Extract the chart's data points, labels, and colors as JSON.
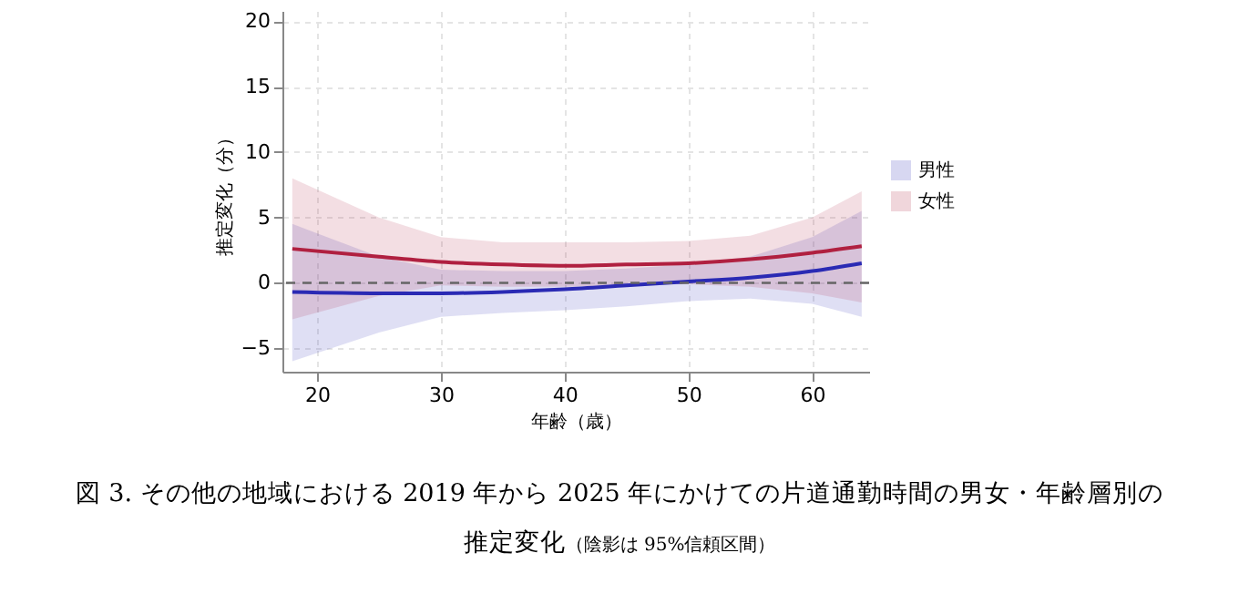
{
  "chart_data": {
    "type": "line",
    "title": "図 3.  その他の地域における 2019 年から 2025 年にかけての片道通勤時間の男女・年齢層別の推定変化",
    "annotations": [
      "（陰影は 95%信頼区間）"
    ],
    "xlabel": "年齢（歳）",
    "ylabel": "推定変化（分）",
    "x": [
      18,
      25,
      30,
      35,
      40,
      45,
      50,
      55,
      60,
      64
    ],
    "series": [
      {
        "name": "男性",
        "color": "#2a2ab4",
        "values": [
          -0.7,
          -0.8,
          -0.8,
          -0.7,
          -0.5,
          -0.2,
          0.1,
          0.4,
          0.9,
          1.5
        ],
        "lower": [
          -6.0,
          -3.8,
          -2.6,
          -2.3,
          -2.1,
          -1.8,
          -1.4,
          -1.2,
          -1.6,
          -2.6
        ],
        "upper": [
          4.5,
          2.0,
          1.0,
          0.9,
          0.9,
          1.1,
          1.4,
          2.0,
          3.5,
          5.5
        ]
      },
      {
        "name": "女性",
        "color": "#b02040",
        "values": [
          2.6,
          2.0,
          1.6,
          1.4,
          1.3,
          1.4,
          1.5,
          1.8,
          2.3,
          2.8
        ],
        "lower": [
          -2.8,
          -1.0,
          -0.2,
          -0.3,
          -0.3,
          -0.2,
          -0.1,
          -0.3,
          -0.8,
          -1.5
        ],
        "upper": [
          8.0,
          5.0,
          3.5,
          3.1,
          3.1,
          3.1,
          3.2,
          3.6,
          5.0,
          7.0
        ]
      }
    ],
    "xlim": [
      17.2,
      64.6
    ],
    "ylim": [
      -6.8,
      20.8
    ],
    "xticks": [
      20,
      30,
      40,
      50,
      60
    ],
    "yticks": [
      -5,
      0,
      5,
      10,
      15,
      20
    ],
    "ref_lines": [
      {
        "axis": "y",
        "value": 0,
        "color": "#666666",
        "line_style": "dashed"
      }
    ],
    "grid": true,
    "legend": "right",
    "line_style": "solid"
  }
}
